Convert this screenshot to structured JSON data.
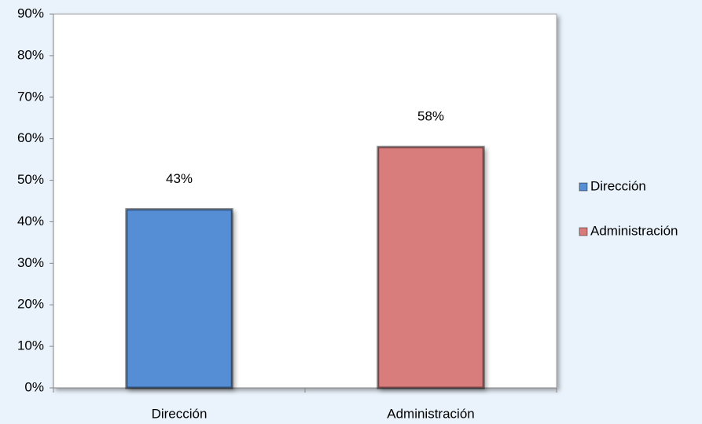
{
  "chart_data": {
    "type": "bar",
    "categories": [
      "Dirección",
      "Administración"
    ],
    "values": [
      43,
      58
    ],
    "value_labels": [
      "43%",
      "58%"
    ],
    "colors": [
      "#558ed5",
      "#d87b7b"
    ],
    "ylim": [
      0,
      90
    ],
    "yticks": [
      {
        "value": 0,
        "label": "0%"
      },
      {
        "value": 10,
        "label": "10%"
      },
      {
        "value": 20,
        "label": "20%"
      },
      {
        "value": 30,
        "label": "30%"
      },
      {
        "value": 40,
        "label": "40%"
      },
      {
        "value": 50,
        "label": "50%"
      },
      {
        "value": 60,
        "label": "60%"
      },
      {
        "value": 70,
        "label": "70%"
      },
      {
        "value": 80,
        "label": "80%"
      },
      {
        "value": 90,
        "label": "90%"
      }
    ],
    "grid": false,
    "legend": "right"
  }
}
